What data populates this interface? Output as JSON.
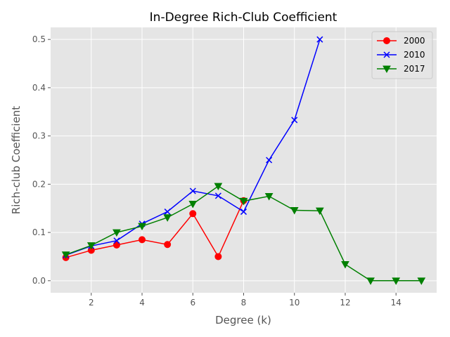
{
  "chart_data": {
    "type": "line",
    "title": "In-Degree Rich-Club Coefficient",
    "xlabel": "Degree (k)",
    "ylabel": "Rich-club Coefficient",
    "xlim": [
      0.4,
      15.6
    ],
    "ylim": [
      -0.025,
      0.525
    ],
    "xticks": [
      2,
      4,
      6,
      8,
      10,
      12,
      14
    ],
    "yticks": [
      0.0,
      0.1,
      0.2,
      0.3,
      0.4,
      0.5
    ],
    "ytick_labels": [
      "0.0",
      "0.1",
      "0.2",
      "0.3",
      "0.4",
      "0.5"
    ],
    "grid": true,
    "legend_position": "top-right",
    "background_color": "#e5e5e5",
    "series": [
      {
        "name": "2000",
        "color": "#ff0000",
        "marker": "circle",
        "x": [
          1,
          2,
          3,
          4,
          5,
          6,
          7,
          8
        ],
        "values": [
          0.048,
          0.063,
          0.074,
          0.085,
          0.075,
          0.139,
          0.05,
          0.166
        ]
      },
      {
        "name": "2010",
        "color": "#0000ff",
        "marker": "x",
        "x": [
          1,
          2,
          3,
          4,
          5,
          6,
          7,
          8,
          9,
          10,
          11
        ],
        "values": [
          0.053,
          0.072,
          0.083,
          0.118,
          0.143,
          0.186,
          0.176,
          0.143,
          0.25,
          0.333,
          0.5
        ]
      },
      {
        "name": "2017",
        "color": "#008000",
        "marker": "triangle-down",
        "x": [
          1,
          2,
          3,
          4,
          5,
          6,
          7,
          8,
          9,
          10,
          11,
          12,
          13,
          14,
          15
        ],
        "values": [
          0.054,
          0.073,
          0.1,
          0.113,
          0.131,
          0.159,
          0.196,
          0.165,
          0.175,
          0.146,
          0.145,
          0.034,
          0.0,
          0.0,
          0.0
        ]
      }
    ]
  }
}
